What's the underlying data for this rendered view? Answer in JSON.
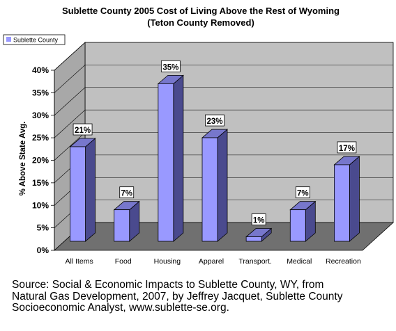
{
  "chart_data": {
    "type": "bar",
    "title": "Sublette County 2005 Cost of Living Above the Rest of Wyoming",
    "subtitle": "(Teton County Removed)",
    "ylabel": "% Above State Avg.",
    "xlabel": "",
    "categories": [
      "All Items",
      "Food",
      "Housing",
      "Apparel",
      "Transport.",
      "Medical",
      "Recreation"
    ],
    "series": [
      {
        "name": "Sublette County",
        "values": [
          21,
          7,
          35,
          23,
          1,
          7,
          17
        ],
        "color": "#9999ff"
      }
    ],
    "data_labels": [
      "21%",
      "7%",
      "35%",
      "23%",
      "1%",
      "7%",
      "17%"
    ],
    "ylim": [
      0,
      40
    ],
    "yticks": [
      0,
      5,
      10,
      15,
      20,
      25,
      30,
      35,
      40
    ],
    "ytick_labels": [
      "0%",
      "5%",
      "10%",
      "15%",
      "20%",
      "25%",
      "30%",
      "35%",
      "40%"
    ],
    "grid": true,
    "legend_position": "top-left",
    "three_d": true,
    "colors": {
      "bar_front": "#9999ff",
      "bar_side": "#4a4a8e",
      "bar_top": "#7777cc",
      "wall": "#c0c0c0",
      "floor": "#707070"
    }
  },
  "source_text": "Source: Social & Economic Impacts to Sublette County, WY, from\nNatural Gas Development, 2007, by Jeffrey Jacquet, Sublette County\nSocioeconomic Analyst, www.sublette-se.org."
}
